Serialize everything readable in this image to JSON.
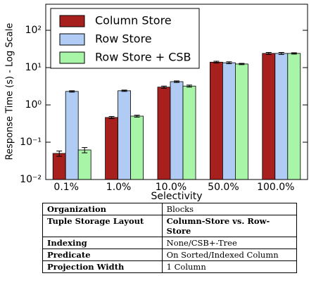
{
  "chart_data": {
    "type": "bar",
    "ylabel": "Response Time (s) - Log Scale",
    "xlabel": "Selectivity",
    "categories": [
      "0.1%",
      "1.0%",
      "10.0%",
      "50.0%",
      "100.0%"
    ],
    "series": [
      {
        "name": "Column Store",
        "color": "#a8201e",
        "values": [
          0.05,
          0.46,
          3.0,
          14,
          24
        ],
        "errors": [
          0.008,
          0.03,
          0.2,
          0.8,
          1.5
        ]
      },
      {
        "name": "Row Store",
        "color": "#b0ccf5",
        "values": [
          2.3,
          2.4,
          4.2,
          13.5,
          24
        ],
        "errors": [
          0.1,
          0.1,
          0.2,
          0.8,
          1.5
        ]
      },
      {
        "name": "Row Store + CSB",
        "color": "#a8f5a8",
        "values": [
          0.062,
          0.5,
          3.2,
          12.5,
          24
        ],
        "errors": [
          0.01,
          0.03,
          0.2,
          0.5,
          1.0
        ]
      }
    ],
    "log_y": true,
    "ylim": [
      0.01,
      500
    ],
    "yticks": [
      {
        "value": 0.01,
        "label": "10⁻²"
      },
      {
        "value": 0.1,
        "label": "10⁻¹"
      },
      {
        "value": 1,
        "label": "10⁰"
      },
      {
        "value": 10,
        "label": "10¹"
      },
      {
        "value": 100,
        "label": "10²"
      }
    ],
    "legend": "upper-left"
  },
  "table": {
    "rows": [
      [
        "Organization",
        "Blocks"
      ],
      [
        "Tuple Storage Layout",
        "Column-Store vs. Row-Store"
      ],
      [
        "Indexing",
        "None/CSB+-Tree"
      ],
      [
        "Predicate",
        "On Sorted/Indexed Column"
      ],
      [
        "Projection Width",
        "1 Column"
      ]
    ]
  }
}
